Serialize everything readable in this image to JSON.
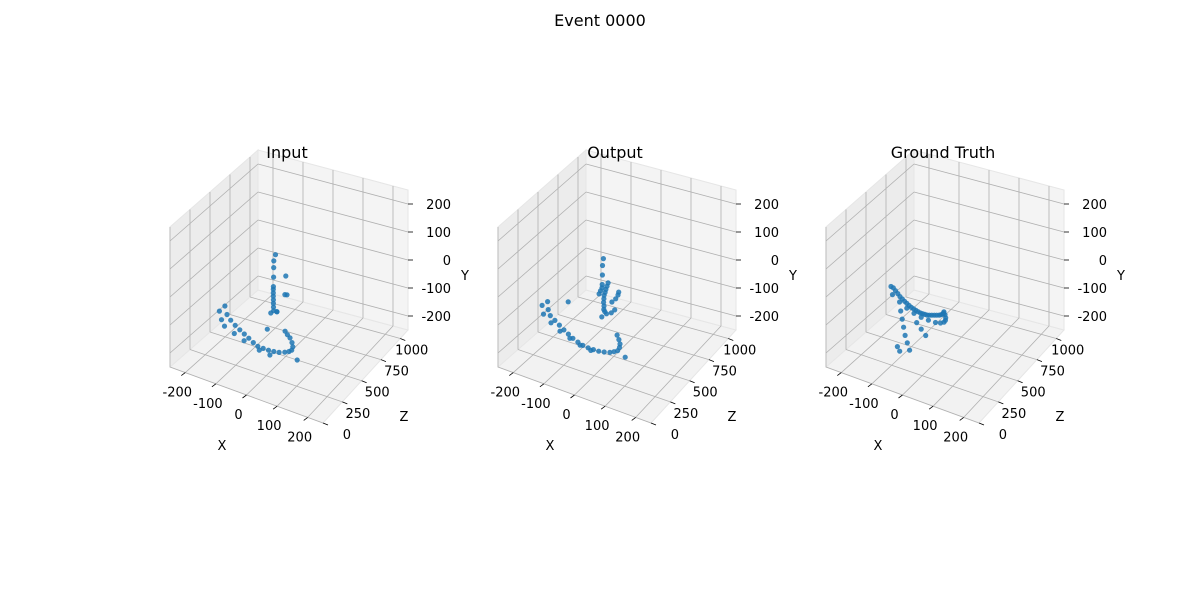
{
  "figure": {
    "title": "Event 0000"
  },
  "chart_data": [
    {
      "type": "scatter",
      "title": "Input",
      "xlabel": "X",
      "ylabel": "Y",
      "zlabel": "Z",
      "x_ticks": [
        "-200",
        "-100",
        "0",
        "100",
        "200"
      ],
      "y_ticks": [
        "-200",
        "-100",
        "0",
        "100",
        "200"
      ],
      "z_ticks": [
        "0",
        "250",
        "500",
        "750",
        "1000"
      ],
      "xlim": [
        -250,
        250
      ],
      "ylim": [
        -250,
        250
      ],
      "zlim": [
        0,
        1100
      ],
      "grid": true,
      "color": "#1f77b4",
      "points": [
        [
          -180,
          -110,
          350
        ],
        [
          -170,
          -95,
          380
        ],
        [
          -150,
          -105,
          330
        ],
        [
          -130,
          -110,
          300
        ],
        [
          -110,
          -115,
          280
        ],
        [
          -90,
          -118,
          260
        ],
        [
          -70,
          -120,
          240
        ],
        [
          -50,
          -122,
          220
        ],
        [
          -30,
          -125,
          200
        ],
        [
          -10,
          -125,
          180
        ],
        [
          10,
          -122,
          170
        ],
        [
          30,
          -118,
          160
        ],
        [
          50,
          -112,
          150
        ],
        [
          70,
          -105,
          140
        ],
        [
          90,
          -95,
          135
        ],
        [
          105,
          -85,
          130
        ],
        [
          115,
          -75,
          125
        ],
        [
          120,
          -60,
          120
        ],
        [
          118,
          -45,
          118
        ],
        [
          112,
          -30,
          115
        ],
        [
          105,
          -20,
          110
        ],
        [
          98,
          -10,
          108
        ],
        [
          -160,
          -120,
          300
        ],
        [
          -140,
          -125,
          260
        ],
        [
          -100,
          -128,
          230
        ],
        [
          -60,
          -130,
          200
        ],
        [
          0,
          -130,
          160
        ],
        [
          40,
          -126,
          140
        ],
        [
          -20,
          -60,
          380
        ],
        [
          -5,
          -55,
          400
        ],
        [
          5,
          -40,
          360
        ],
        [
          10,
          -20,
          300
        ],
        [
          15,
          0,
          280
        ],
        [
          20,
          20,
          260
        ],
        [
          25,
          40,
          240
        ],
        [
          30,
          60,
          220
        ],
        [
          20,
          80,
          260
        ],
        [
          10,
          100,
          300
        ],
        [
          0,
          120,
          340
        ],
        [
          -10,
          130,
          380
        ],
        [
          -15,
          140,
          420
        ],
        [
          60,
          70,
          250
        ],
        [
          80,
          90,
          200
        ],
        [
          50,
          120,
          300
        ],
        [
          -30,
          -10,
          450
        ],
        [
          -25,
          10,
          430
        ],
        [
          0,
          -80,
          260
        ],
        [
          150,
          -80,
          60
        ]
      ]
    },
    {
      "type": "scatter",
      "title": "Output",
      "xlabel": "X",
      "ylabel": "Y",
      "zlabel": "Z",
      "x_ticks": [
        "-200",
        "-100",
        "0",
        "100",
        "200"
      ],
      "y_ticks": [
        "-200",
        "-100",
        "0",
        "100",
        "200"
      ],
      "z_ticks": [
        "0",
        "250",
        "500",
        "750",
        "1000"
      ],
      "xlim": [
        -250,
        250
      ],
      "ylim": [
        -250,
        250
      ],
      "zlim": [
        0,
        1100
      ],
      "grid": true,
      "color": "#1f77b4",
      "points": [
        [
          -200,
          -100,
          360
        ],
        [
          -190,
          -90,
          390
        ],
        [
          -175,
          -100,
          340
        ],
        [
          -160,
          -108,
          310
        ],
        [
          -140,
          -112,
          290
        ],
        [
          -120,
          -116,
          270
        ],
        [
          -100,
          -120,
          250
        ],
        [
          -80,
          -122,
          230
        ],
        [
          -60,
          -124,
          210
        ],
        [
          -40,
          -126,
          195
        ],
        [
          -20,
          -126,
          180
        ],
        [
          0,
          -124,
          170
        ],
        [
          20,
          -120,
          160
        ],
        [
          40,
          -115,
          150
        ],
        [
          60,
          -108,
          142
        ],
        [
          80,
          -100,
          136
        ],
        [
          95,
          -90,
          130
        ],
        [
          108,
          -80,
          126
        ],
        [
          115,
          -65,
          122
        ],
        [
          118,
          -50,
          118
        ],
        [
          115,
          -35,
          115
        ],
        [
          110,
          -20,
          112
        ],
        [
          -185,
          -115,
          320
        ],
        [
          -150,
          -122,
          280
        ],
        [
          -110,
          -126,
          240
        ],
        [
          -70,
          -128,
          210
        ],
        [
          -30,
          -130,
          185
        ],
        [
          10,
          -128,
          165
        ],
        [
          -10,
          -70,
          380
        ],
        [
          0,
          -60,
          400
        ],
        [
          5,
          -40,
          360
        ],
        [
          12,
          -20,
          320
        ],
        [
          18,
          0,
          300
        ],
        [
          22,
          20,
          280
        ],
        [
          28,
          40,
          260
        ],
        [
          34,
          60,
          240
        ],
        [
          40,
          75,
          230
        ],
        [
          45,
          90,
          220
        ],
        [
          50,
          105,
          215
        ],
        [
          55,
          120,
          210
        ],
        [
          20,
          85,
          270
        ],
        [
          10,
          105,
          310
        ],
        [
          0,
          125,
          350
        ],
        [
          -5,
          140,
          380
        ],
        [
          70,
          60,
          200
        ],
        [
          85,
          80,
          190
        ],
        [
          95,
          100,
          180
        ],
        [
          100,
          115,
          170
        ],
        [
          -40,
          -20,
          460
        ],
        [
          -30,
          0,
          440
        ],
        [
          -20,
          20,
          420
        ],
        [
          60,
          10,
          230
        ],
        [
          75,
          30,
          215
        ],
        [
          150,
          -70,
          60
        ],
        [
          -120,
          -60,
          380
        ]
      ]
    },
    {
      "type": "scatter",
      "title": "Ground Truth",
      "xlabel": "X",
      "ylabel": "Y",
      "zlabel": "Z",
      "x_ticks": [
        "-200",
        "-100",
        "0",
        "100",
        "200"
      ],
      "y_ticks": [
        "-200",
        "-100",
        "0",
        "100",
        "200"
      ],
      "z_ticks": [
        "0",
        "250",
        "500",
        "750",
        "1000"
      ],
      "xlim": [
        -250,
        250
      ],
      "ylim": [
        -250,
        250
      ],
      "zlim": [
        0,
        1100
      ],
      "grid": true,
      "color": "#1f77b4",
      "points": [
        [
          -150,
          -30,
          430
        ],
        [
          -140,
          -28,
          420
        ],
        [
          -130,
          -32,
          410
        ],
        [
          -120,
          -36,
          400
        ],
        [
          -110,
          -40,
          390
        ],
        [
          -100,
          -42,
          380
        ],
        [
          -90,
          -44,
          370
        ],
        [
          -80,
          -45,
          360
        ],
        [
          -70,
          -46,
          350
        ],
        [
          -60,
          -46,
          340
        ],
        [
          -50,
          -45,
          330
        ],
        [
          -40,
          -44,
          320
        ],
        [
          -30,
          -42,
          310
        ],
        [
          -20,
          -40,
          300
        ],
        [
          -10,
          -36,
          290
        ],
        [
          0,
          -32,
          280
        ],
        [
          10,
          -28,
          270
        ],
        [
          20,
          -22,
          260
        ],
        [
          30,
          -16,
          252
        ],
        [
          40,
          -10,
          244
        ],
        [
          50,
          -4,
          236
        ],
        [
          60,
          2,
          230
        ],
        [
          68,
          8,
          224
        ],
        [
          74,
          14,
          220
        ],
        [
          78,
          20,
          216
        ],
        [
          80,
          26,
          212
        ],
        [
          -140,
          -50,
          410
        ],
        [
          -110,
          -58,
          385
        ],
        [
          -80,
          -62,
          360
        ],
        [
          -50,
          -62,
          335
        ],
        [
          -20,
          -58,
          310
        ],
        [
          10,
          -50,
          285
        ],
        [
          40,
          -40,
          260
        ],
        [
          60,
          -30,
          245
        ],
        [
          75,
          -18,
          232
        ],
        [
          82,
          -6,
          222
        ],
        [
          85,
          6,
          215
        ],
        [
          84,
          18,
          210
        ],
        [
          -100,
          -80,
          360
        ],
        [
          -90,
          -100,
          340
        ],
        [
          -80,
          -120,
          320
        ],
        [
          -70,
          -140,
          300
        ],
        [
          -60,
          -160,
          290
        ],
        [
          -50,
          -180,
          280
        ],
        [
          -40,
          -90,
          330
        ],
        [
          -20,
          -100,
          310
        ],
        [
          0,
          -110,
          290
        ],
        [
          -95,
          -190,
          300
        ],
        [
          -85,
          -200,
          290
        ]
      ]
    }
  ]
}
